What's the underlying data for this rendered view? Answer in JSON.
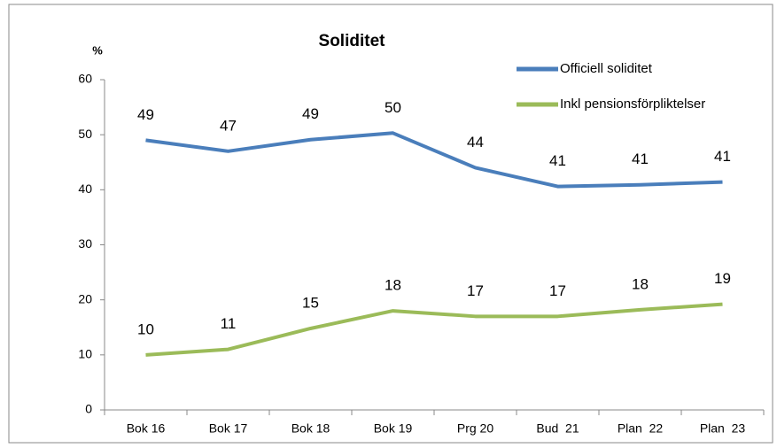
{
  "chart_data": {
    "type": "line",
    "title": "Soliditet",
    "y_label": "%",
    "categories": [
      "Bok 16",
      "Bok 17",
      "Bok 18",
      "Bok 19",
      "Prg 20",
      "Bud  21",
      "Plan  22",
      "Plan  23"
    ],
    "series": [
      {
        "name": "Officiell soliditet",
        "color": "#4a7ebb",
        "values": [
          49,
          47,
          49.1,
          50.3,
          44,
          40.6,
          40.9,
          41.4
        ],
        "value_labels": [
          "49",
          "47",
          "49",
          "50",
          "44",
          "41",
          "41",
          "41"
        ]
      },
      {
        "name": "Inkl pensionsförpliktelser",
        "color": "#9bbb59",
        "values": [
          10,
          11,
          14.8,
          18,
          17,
          17,
          18.2,
          19.2
        ],
        "value_labels": [
          "10",
          "11",
          "15",
          "18",
          "17",
          "17",
          "18",
          "19"
        ]
      }
    ],
    "ylim": [
      0,
      60
    ],
    "yticks": [
      0,
      10,
      20,
      30,
      40,
      50,
      60
    ],
    "legend": "top-right"
  }
}
